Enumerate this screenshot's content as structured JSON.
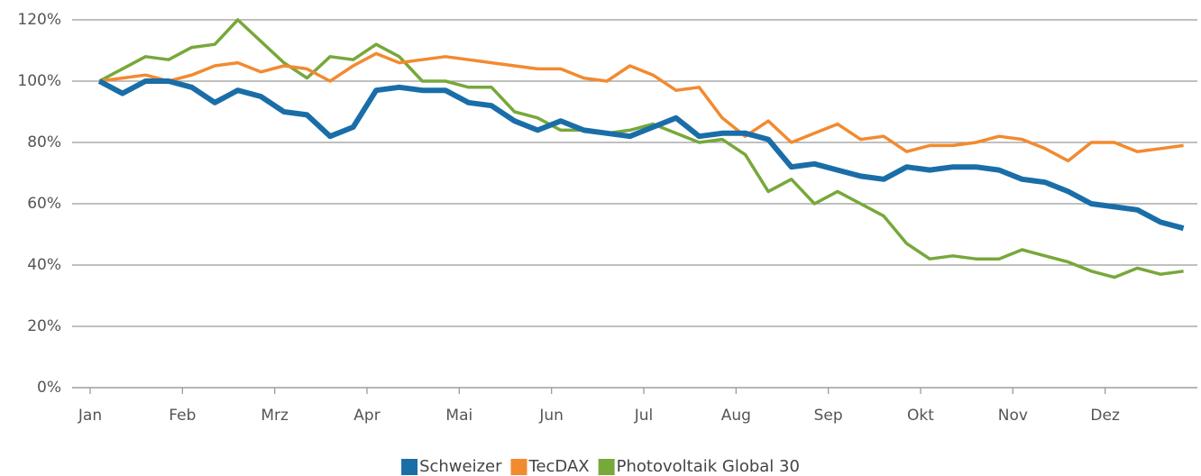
{
  "chart_data": {
    "type": "line",
    "x": [
      0.1,
      0.35,
      0.6,
      0.85,
      1.1,
      1.35,
      1.6,
      1.85,
      2.1,
      2.35,
      2.6,
      2.85,
      3.1,
      3.35,
      3.6,
      3.85,
      4.1,
      4.35,
      4.6,
      4.85,
      5.1,
      5.35,
      5.6,
      5.85,
      6.1,
      6.35,
      6.6,
      6.85,
      7.1,
      7.35,
      7.6,
      7.85,
      8.1,
      8.35,
      8.6,
      8.85,
      9.1,
      9.35,
      9.6,
      9.85,
      10.1,
      10.35,
      10.6,
      10.85,
      11.1,
      11.35,
      11.6,
      11.85
    ],
    "series": [
      {
        "name": "Schweizer",
        "color": "#1a6ea8",
        "values": [
          100,
          96,
          100,
          100,
          98,
          93,
          97,
          95,
          90,
          89,
          82,
          85,
          97,
          98,
          97,
          97,
          93,
          92,
          87,
          84,
          87,
          84,
          83,
          82,
          85,
          88,
          82,
          83,
          83,
          81,
          72,
          73,
          71,
          69,
          68,
          72,
          71,
          72,
          72,
          71,
          68,
          67,
          64,
          60,
          59,
          58,
          54,
          52
        ]
      },
      {
        "name": "TecDAX",
        "color": "#f28a30",
        "values": [
          100,
          101,
          102,
          100,
          102,
          105,
          106,
          103,
          105,
          104,
          100,
          105,
          109,
          106,
          107,
          108,
          107,
          106,
          105,
          104,
          104,
          101,
          100,
          105,
          102,
          97,
          98,
          88,
          82,
          87,
          80,
          83,
          86,
          81,
          82,
          77,
          79,
          79,
          80,
          82,
          81,
          78,
          74,
          80,
          80,
          77,
          78,
          79
        ]
      },
      {
        "name": "Photovoltaik Global 30",
        "color": "#77a83a",
        "values": [
          100,
          104,
          108,
          107,
          111,
          112,
          120,
          113,
          106,
          101,
          108,
          107,
          112,
          108,
          100,
          100,
          98,
          98,
          90,
          88,
          84,
          84,
          83,
          84,
          86,
          83,
          80,
          81,
          76,
          64,
          68,
          60,
          64,
          60,
          56,
          47,
          42,
          43,
          42,
          42,
          45,
          43,
          41,
          38,
          36,
          39,
          37,
          38
        ]
      }
    ],
    "xlim": [
      0,
      12
    ],
    "xticks": [
      {
        "value": 0,
        "label": "Jan"
      },
      {
        "value": 1,
        "label": "Feb"
      },
      {
        "value": 2,
        "label": "Mrz"
      },
      {
        "value": 3,
        "label": "Apr"
      },
      {
        "value": 4,
        "label": "Mai"
      },
      {
        "value": 5,
        "label": "Jun"
      },
      {
        "value": 6,
        "label": "Jul"
      },
      {
        "value": 7,
        "label": "Aug"
      },
      {
        "value": 8,
        "label": "Sep"
      },
      {
        "value": 9,
        "label": "Okt"
      },
      {
        "value": 10,
        "label": "Nov"
      },
      {
        "value": 11,
        "label": "Dez"
      }
    ],
    "ylim": [
      0,
      120
    ],
    "yticks": [
      {
        "value": 0,
        "label": "0%"
      },
      {
        "value": 20,
        "label": "20%"
      },
      {
        "value": 40,
        "label": "40%"
      },
      {
        "value": 60,
        "label": "60%"
      },
      {
        "value": 80,
        "label": "80%"
      },
      {
        "value": 100,
        "label": "100%"
      },
      {
        "value": 120,
        "label": "120%"
      }
    ],
    "grid": true,
    "legend": "bottom"
  }
}
